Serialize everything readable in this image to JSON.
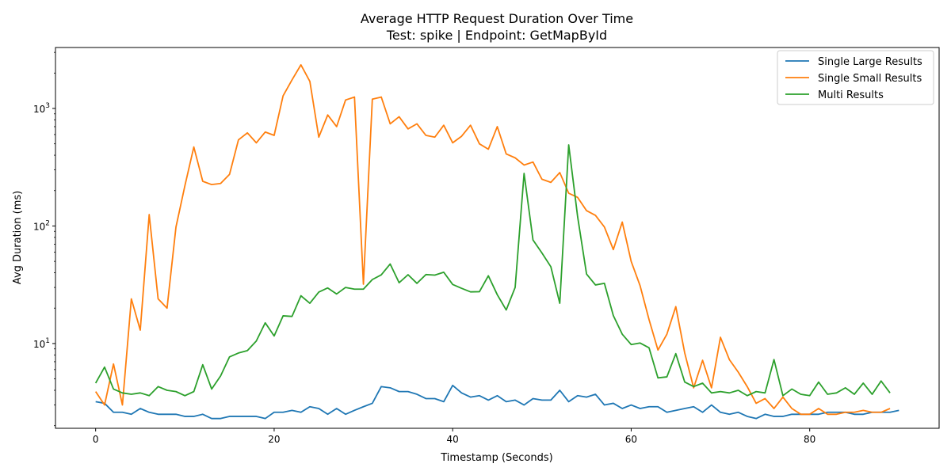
{
  "chart_data": {
    "type": "line",
    "title": "Average HTTP Request Duration Over Time",
    "subtitle": "Test: spike | Endpoint: GetMapById",
    "xlabel": "Timestamp (Seconds)",
    "ylabel": "Avg Duration (ms)",
    "xlim": [
      -4.5,
      94.5
    ],
    "ylim": [
      1.9,
      3300
    ],
    "yscale": "log",
    "grid": false,
    "legend_position": "top-right",
    "x_ticks": [
      0,
      20,
      40,
      60,
      80
    ],
    "y_ticks": [
      {
        "value": 10,
        "base": "10",
        "exp": "1"
      },
      {
        "value": 100,
        "base": "10",
        "exp": "2"
      },
      {
        "value": 1000,
        "base": "10",
        "exp": "3"
      }
    ],
    "series": [
      {
        "name": "Single Large Results",
        "color": "#1f77b4",
        "values": [
          3.2,
          3.1,
          2.6,
          2.6,
          2.5,
          2.8,
          2.6,
          2.5,
          2.5,
          2.5,
          2.4,
          2.4,
          2.5,
          2.3,
          2.3,
          2.4,
          2.4,
          2.4,
          2.4,
          2.3,
          2.6,
          2.6,
          2.7,
          2.6,
          2.9,
          2.8,
          2.5,
          2.8,
          2.5,
          2.7,
          2.9,
          3.1,
          4.3,
          4.2,
          3.9,
          3.9,
          3.7,
          3.4,
          3.4,
          3.2,
          4.4,
          3.8,
          3.5,
          3.6,
          3.3,
          3.6,
          3.2,
          3.3,
          3.0,
          3.4,
          3.3,
          3.3,
          4.0,
          3.2,
          3.6,
          3.5,
          3.7,
          3.0,
          3.1,
          2.8,
          3.0,
          2.8,
          2.9,
          2.9,
          2.6,
          2.7,
          2.8,
          2.9,
          2.6,
          3.0,
          2.6,
          2.5,
          2.6,
          2.4,
          2.3,
          2.5,
          2.4,
          2.4,
          2.5,
          2.5,
          2.5,
          2.5,
          2.6,
          2.6,
          2.6,
          2.5,
          2.5,
          2.6,
          2.6,
          2.6,
          2.7
        ]
      },
      {
        "name": "Single Small Results",
        "color": "#ff7f0e",
        "values": [
          3.9,
          3.0,
          6.7,
          3.0,
          24,
          13,
          125,
          24,
          20,
          98,
          220,
          470,
          240,
          225,
          230,
          275,
          540,
          620,
          510,
          630,
          590,
          1280,
          1750,
          2350,
          1700,
          570,
          880,
          700,
          1180,
          1250,
          32,
          1200,
          1250,
          740,
          850,
          670,
          740,
          590,
          570,
          720,
          510,
          580,
          720,
          500,
          450,
          700,
          410,
          380,
          330,
          350,
          250,
          235,
          285,
          190,
          175,
          135,
          123,
          98,
          63,
          108,
          50,
          31,
          16,
          8.8,
          12,
          20.6,
          8.3,
          4.2,
          7.2,
          4.2,
          11.3,
          7.3,
          5.7,
          4.3,
          3.1,
          3.4,
          2.8,
          3.5,
          2.8,
          2.5,
          2.5,
          2.8,
          2.5,
          2.5,
          2.6,
          2.6,
          2.7,
          2.6,
          2.6,
          2.8
        ]
      },
      {
        "name": "Multi Results",
        "color": "#2ca02c",
        "values": [
          4.6,
          6.3,
          4.1,
          3.8,
          3.7,
          3.8,
          3.6,
          4.3,
          4.0,
          3.9,
          3.6,
          3.9,
          6.6,
          4.1,
          5.3,
          7.7,
          8.3,
          8.7,
          10.5,
          15,
          11.6,
          17.2,
          17,
          25.5,
          22,
          27.4,
          29.7,
          26.4,
          30,
          29,
          29,
          35,
          38.4,
          47.5,
          32.9,
          38.5,
          32.5,
          38.6,
          38.2,
          40.4,
          31.8,
          29.5,
          27.5,
          27.6,
          37.7,
          26,
          19.3,
          30,
          280,
          76,
          59,
          45,
          22,
          490,
          120,
          39,
          31.5,
          32.5,
          17.3,
          12,
          9.8,
          10.1,
          9.2,
          5.1,
          5.2,
          8.2,
          4.7,
          4.3,
          4.6,
          3.8,
          3.9,
          3.8,
          4.0,
          3.6,
          3.9,
          3.8,
          7.3,
          3.6,
          4.1,
          3.7,
          3.6,
          4.7,
          3.7,
          3.8,
          4.2,
          3.7,
          4.6,
          3.7,
          4.8,
          3.8
        ]
      }
    ]
  }
}
